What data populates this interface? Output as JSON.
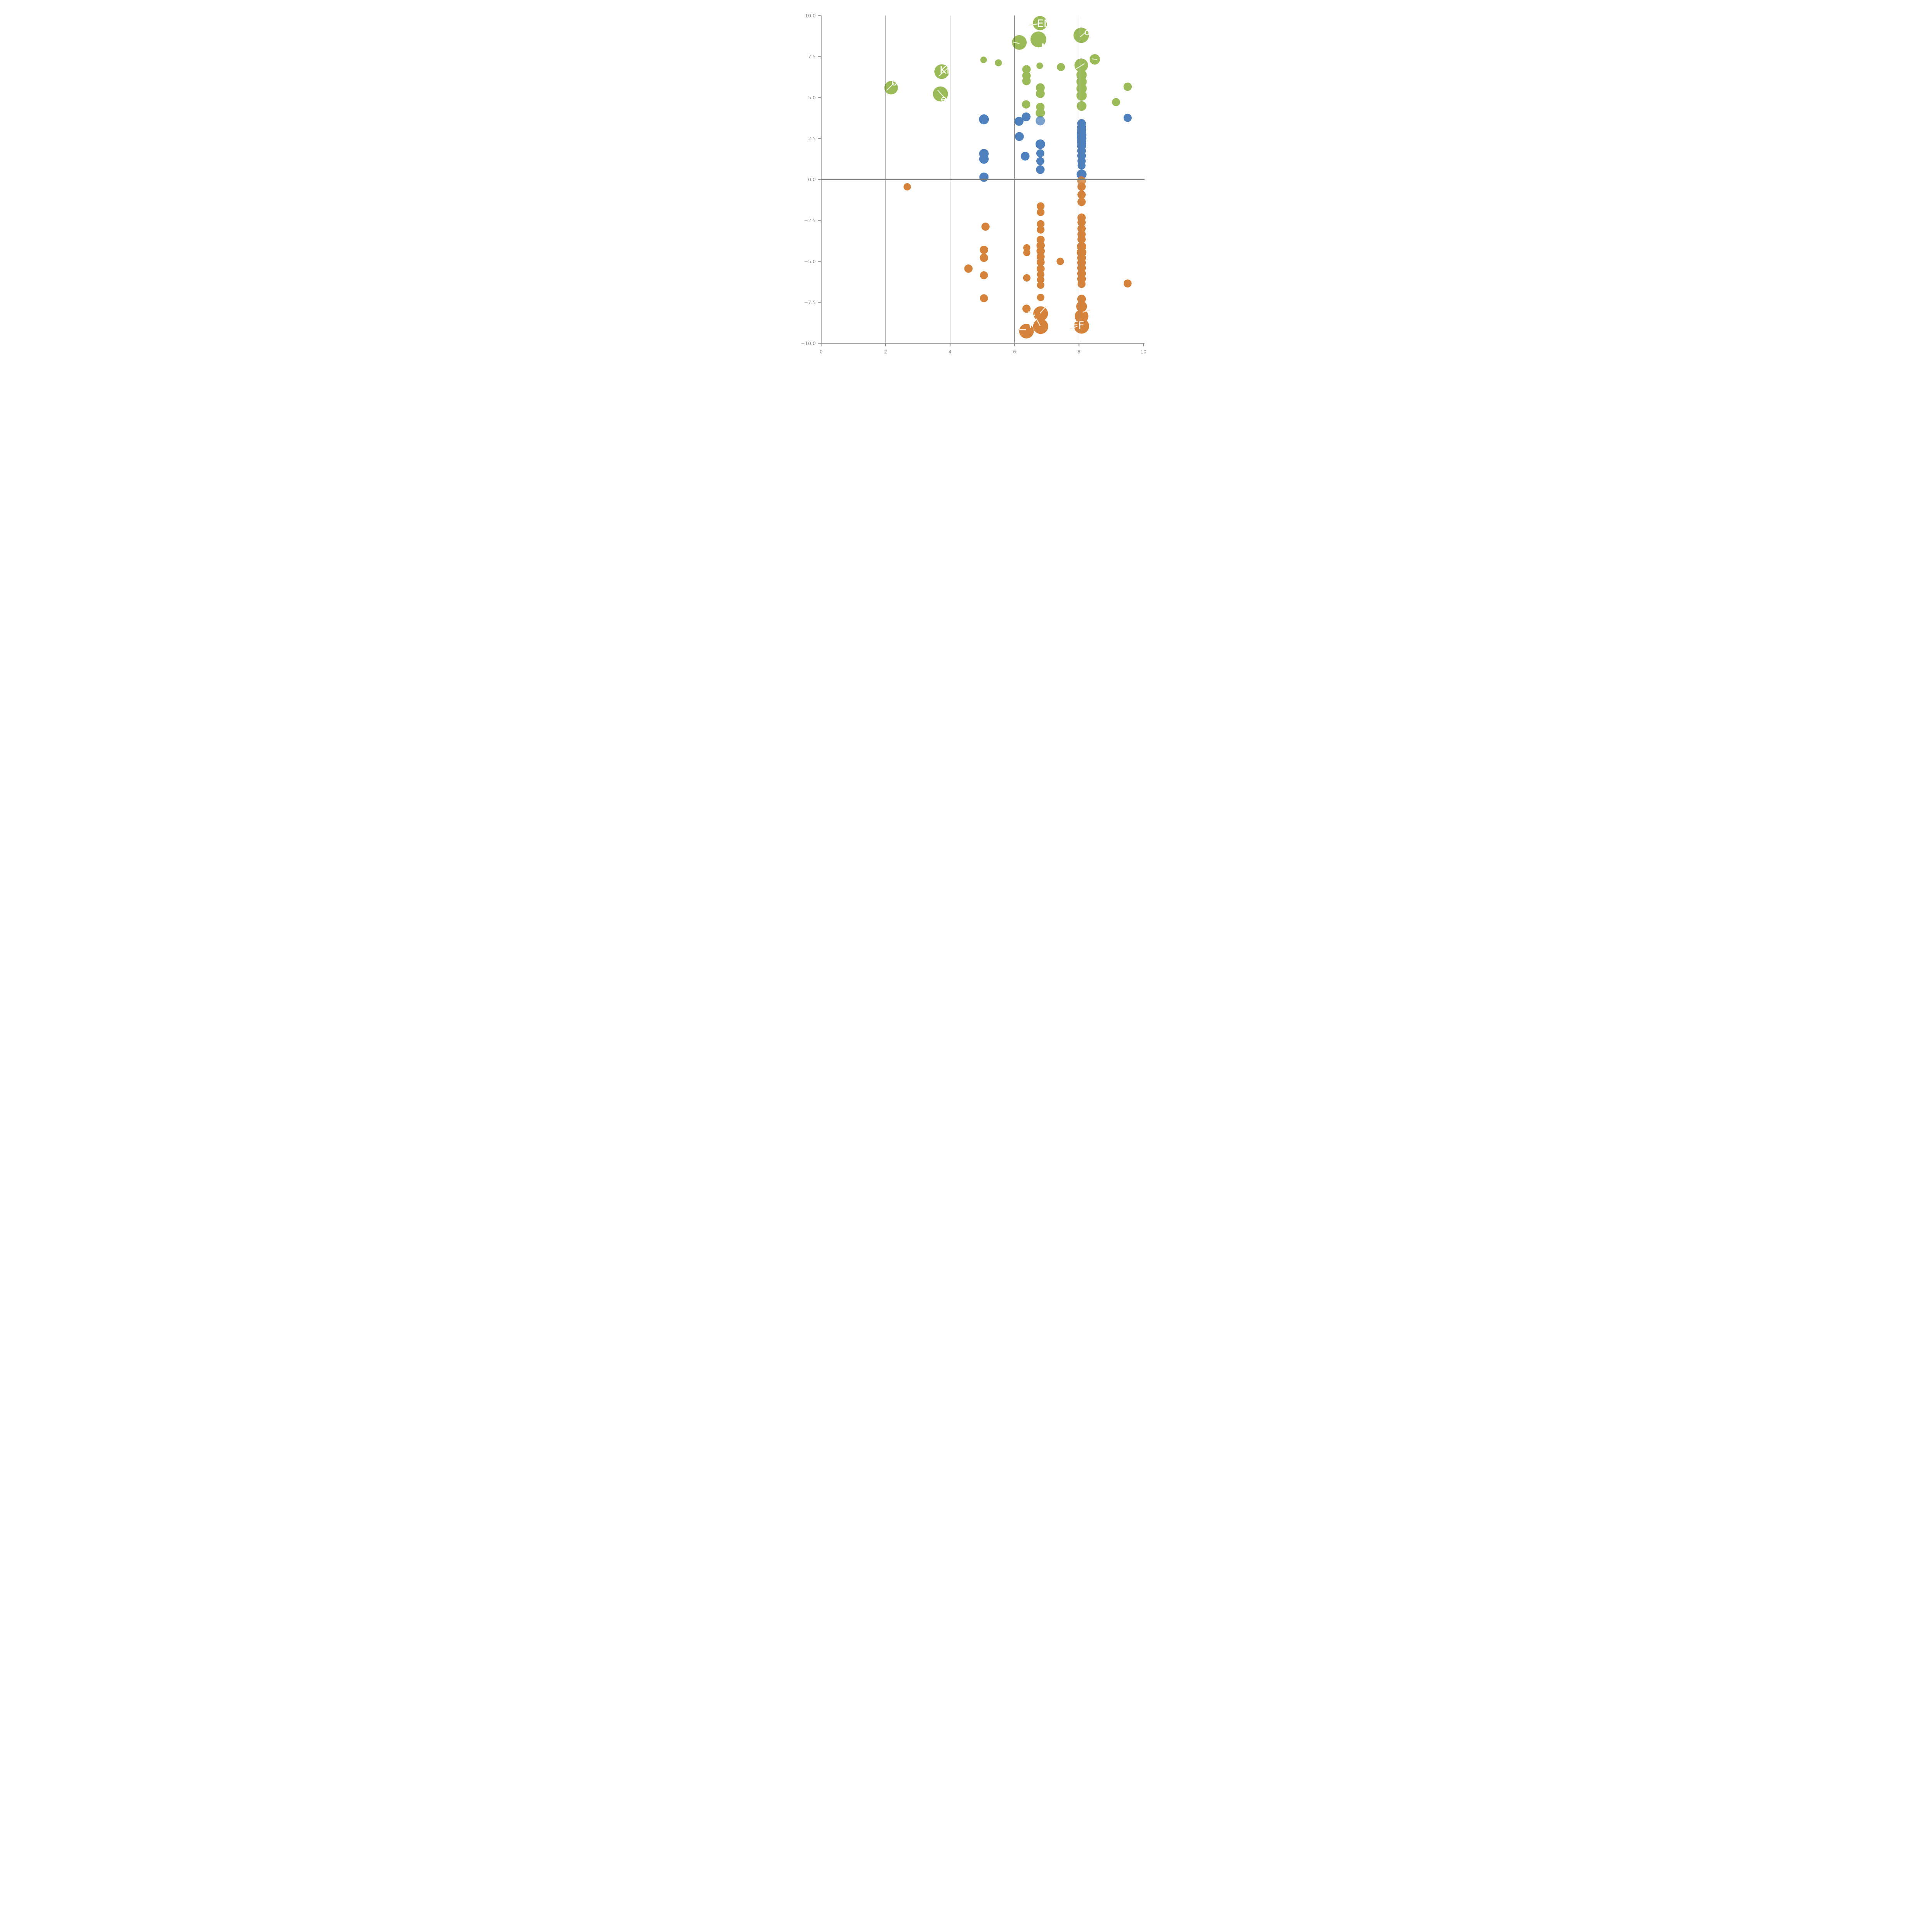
{
  "figure": {
    "background": "#ffffff",
    "axis_color": "#8c8c8c",
    "tick_label_color": "#8a8a8a",
    "gridline_color": "#5a5a5a",
    "zero_line_color": "#7a7a7a"
  },
  "chart_data": {
    "type": "scatter",
    "title": "",
    "xlabel": "",
    "ylabel": "",
    "xlim": [
      0,
      10
    ],
    "ylim": [
      -10,
      10
    ],
    "x_ticks": [
      0,
      2,
      4,
      6,
      8,
      10
    ],
    "x_tick_labels": [
      "0",
      "2",
      "4",
      "6",
      "8",
      "10"
    ],
    "y_ticks": [
      10.0,
      7.5,
      5.0,
      2.5,
      0.0,
      -2.5,
      -5.0,
      -7.5,
      -10.0
    ],
    "y_tick_labels": [
      "10.0",
      "7.5",
      "5.0",
      "2.5",
      "0.0",
      "−2.5",
      "−5.0",
      "−7.5",
      "−10.0"
    ],
    "grid_x": [
      2,
      4,
      6,
      8
    ],
    "zero_line_y": 0,
    "legend": "none",
    "series": [
      {
        "name": "green",
        "color": "#9bbb59",
        "leader_color": "#e7f0d6",
        "points": [
          {
            "x": 6.79,
            "y": 9.54,
            "r": 18.5
          },
          {
            "x": 6.15,
            "y": 8.36,
            "r": 19.0
          },
          {
            "x": 6.74,
            "y": 8.55,
            "r": 20.5
          },
          {
            "x": 8.07,
            "y": 8.8,
            "r": 20.0
          },
          {
            "x": 5.04,
            "y": 7.3,
            "r": 8.5
          },
          {
            "x": 5.5,
            "y": 7.12,
            "r": 9.0
          },
          {
            "x": 8.49,
            "y": 7.33,
            "r": 13.5
          },
          {
            "x": 7.44,
            "y": 6.86,
            "r": 10.4
          },
          {
            "x": 6.78,
            "y": 6.94,
            "r": 8.5
          },
          {
            "x": 8.07,
            "y": 6.97,
            "r": 17.6
          },
          {
            "x": 6.37,
            "y": 6.72,
            "r": 11.0
          },
          {
            "x": 6.37,
            "y": 6.33,
            "r": 11.0
          },
          {
            "x": 6.37,
            "y": 6.01,
            "r": 11.0
          },
          {
            "x": 8.08,
            "y": 6.38,
            "r": 13.4
          },
          {
            "x": 8.08,
            "y": 5.97,
            "r": 13.4
          },
          {
            "x": 8.08,
            "y": 5.55,
            "r": 13.4
          },
          {
            "x": 8.08,
            "y": 5.12,
            "r": 13.4
          },
          {
            "x": 2.17,
            "y": 5.6,
            "r": 17.5
          },
          {
            "x": 3.74,
            "y": 6.58,
            "r": 19.0
          },
          {
            "x": 3.7,
            "y": 5.22,
            "r": 19.5
          },
          {
            "x": 6.8,
            "y": 5.6,
            "r": 11.5
          },
          {
            "x": 6.8,
            "y": 5.24,
            "r": 11.5
          },
          {
            "x": 9.51,
            "y": 5.66,
            "r": 10.8
          },
          {
            "x": 9.15,
            "y": 4.72,
            "r": 10.5
          },
          {
            "x": 6.36,
            "y": 4.58,
            "r": 10.8
          },
          {
            "x": 6.8,
            "y": 4.42,
            "r": 11.0
          },
          {
            "x": 6.8,
            "y": 4.06,
            "r": 12.0
          },
          {
            "x": 8.08,
            "y": 4.48,
            "r": 12.6
          }
        ]
      },
      {
        "name": "blue",
        "color": "#4e80bd",
        "leader_color": "#dde8f4",
        "points": [
          {
            "x": 5.05,
            "y": 3.67,
            "r": 12.8
          },
          {
            "x": 9.51,
            "y": 3.76,
            "r": 10.6
          },
          {
            "x": 6.36,
            "y": 3.82,
            "r": 11.4
          },
          {
            "x": 6.14,
            "y": 3.55,
            "r": 11.6
          },
          {
            "x": 6.8,
            "y": 3.58,
            "r": 12.0,
            "alpha": 0.75
          },
          {
            "x": 6.15,
            "y": 2.62,
            "r": 11.6
          },
          {
            "x": 5.05,
            "y": 1.57,
            "r": 12.4
          },
          {
            "x": 5.05,
            "y": 1.25,
            "r": 12.4
          },
          {
            "x": 6.33,
            "y": 1.42,
            "r": 11.4
          },
          {
            "x": 6.8,
            "y": 2.15,
            "r": 12.4
          },
          {
            "x": 6.8,
            "y": 1.6,
            "r": 10.4
          },
          {
            "x": 6.8,
            "y": 1.12,
            "r": 10.4
          },
          {
            "x": 6.8,
            "y": 0.6,
            "r": 11.2
          },
          {
            "x": 5.05,
            "y": 0.14,
            "r": 12.0
          },
          {
            "x": 8.08,
            "y": 3.42,
            "r": 11.2
          },
          {
            "x": 8.08,
            "y": 3.18,
            "r": 11.6
          },
          {
            "x": 8.08,
            "y": 2.95,
            "r": 12.0
          },
          {
            "x": 8.08,
            "y": 2.72,
            "r": 12.4
          },
          {
            "x": 8.08,
            "y": 2.5,
            "r": 12.4
          },
          {
            "x": 8.08,
            "y": 2.28,
            "r": 12.0
          },
          {
            "x": 8.08,
            "y": 2.05,
            "r": 11.6
          },
          {
            "x": 8.08,
            "y": 1.75,
            "r": 11.2
          },
          {
            "x": 8.08,
            "y": 1.45,
            "r": 11.2
          },
          {
            "x": 8.08,
            "y": 1.12,
            "r": 10.8
          },
          {
            "x": 8.08,
            "y": 0.85,
            "r": 10.4
          },
          {
            "x": 8.08,
            "y": 0.31,
            "r": 12.8
          }
        ]
      },
      {
        "name": "orange",
        "color": "#d5823a",
        "leader_color": "#f9e7d4",
        "points": [
          {
            "x": 2.67,
            "y": -0.45,
            "r": 9.5
          },
          {
            "x": 8.08,
            "y": -0.08,
            "r": 11.5,
            "alpha": 0.85
          },
          {
            "x": 8.08,
            "y": -0.44,
            "r": 10.8
          },
          {
            "x": 8.08,
            "y": -0.93,
            "r": 10.8
          },
          {
            "x": 8.08,
            "y": -1.37,
            "r": 10.8
          },
          {
            "x": 6.81,
            "y": -1.63,
            "r": 10.0
          },
          {
            "x": 6.81,
            "y": -2.0,
            "r": 10.0
          },
          {
            "x": 5.1,
            "y": -2.88,
            "r": 10.6
          },
          {
            "x": 6.81,
            "y": -2.72,
            "r": 10.0
          },
          {
            "x": 6.81,
            "y": -3.07,
            "r": 10.0
          },
          {
            "x": 8.08,
            "y": -2.33,
            "r": 10.8
          },
          {
            "x": 8.08,
            "y": -2.62,
            "r": 10.8
          },
          {
            "x": 8.08,
            "y": -3.0,
            "r": 10.8
          },
          {
            "x": 8.08,
            "y": -3.35,
            "r": 10.8
          },
          {
            "x": 8.08,
            "y": -3.65,
            "r": 10.8
          },
          {
            "x": 6.81,
            "y": -3.68,
            "r": 10.4
          },
          {
            "x": 6.81,
            "y": -4.03,
            "r": 10.8
          },
          {
            "x": 6.81,
            "y": -4.37,
            "r": 10.8
          },
          {
            "x": 6.81,
            "y": -4.72,
            "r": 10.4
          },
          {
            "x": 6.81,
            "y": -5.05,
            "r": 10.4
          },
          {
            "x": 6.81,
            "y": -5.45,
            "r": 10.4
          },
          {
            "x": 6.81,
            "y": -5.8,
            "r": 9.6
          },
          {
            "x": 6.81,
            "y": -6.12,
            "r": 9.6
          },
          {
            "x": 6.81,
            "y": -6.45,
            "r": 9.6
          },
          {
            "x": 6.81,
            "y": -7.2,
            "r": 9.6
          },
          {
            "x": 6.38,
            "y": -4.17,
            "r": 9.2
          },
          {
            "x": 6.38,
            "y": -4.47,
            "r": 9.2
          },
          {
            "x": 6.38,
            "y": -6.01,
            "r": 9.6
          },
          {
            "x": 7.42,
            "y": -5.0,
            "r": 9.6
          },
          {
            "x": 4.57,
            "y": -5.44,
            "r": 10.8
          },
          {
            "x": 5.05,
            "y": -4.3,
            "r": 10.8
          },
          {
            "x": 5.05,
            "y": -4.78,
            "r": 10.8
          },
          {
            "x": 5.05,
            "y": -5.85,
            "r": 10.4
          },
          {
            "x": 5.05,
            "y": -7.25,
            "r": 10.4
          },
          {
            "x": 9.51,
            "y": -6.35,
            "r": 10.4
          },
          {
            "x": 8.08,
            "y": -4.1,
            "r": 12.0
          },
          {
            "x": 8.08,
            "y": -4.45,
            "r": 12.4
          },
          {
            "x": 8.08,
            "y": -4.78,
            "r": 11.2
          },
          {
            "x": 8.08,
            "y": -5.08,
            "r": 11.2
          },
          {
            "x": 8.08,
            "y": -5.4,
            "r": 11.2
          },
          {
            "x": 8.08,
            "y": -5.75,
            "r": 11.2
          },
          {
            "x": 8.08,
            "y": -6.07,
            "r": 11.2
          },
          {
            "x": 8.08,
            "y": -6.38,
            "r": 10.4
          },
          {
            "x": 8.08,
            "y": -7.3,
            "r": 11.2
          },
          {
            "x": 8.08,
            "y": -7.75,
            "r": 14.0
          },
          {
            "x": 8.08,
            "y": -8.35,
            "r": 17.6
          },
          {
            "x": 8.08,
            "y": -8.95,
            "r": 19.6
          },
          {
            "x": 6.37,
            "y": -7.89,
            "r": 10.6
          },
          {
            "x": 6.81,
            "y": -8.19,
            "r": 19.0
          },
          {
            "x": 6.81,
            "y": -8.97,
            "r": 19.6
          },
          {
            "x": 6.37,
            "y": -9.26,
            "r": 19.0
          }
        ]
      }
    ],
    "leader_lines": [
      {
        "series": "green",
        "x1": 6.45,
        "y1": 9.42,
        "x2": 6.76,
        "y2": 9.5,
        "w": 2.4
      },
      {
        "series": "green",
        "x1": 5.97,
        "y1": 8.38,
        "x2": 6.14,
        "y2": 8.3,
        "w": 2.4
      },
      {
        "series": "green",
        "x1": 8.2,
        "y1": 8.97,
        "x2": 8.04,
        "y2": 8.71,
        "w": 2.2
      },
      {
        "series": "green",
        "x1": 8.41,
        "y1": 7.36,
        "x2": 8.56,
        "y2": 7.32,
        "w": 2.2
      },
      {
        "series": "green",
        "x1": 7.92,
        "y1": 6.76,
        "x2": 8.16,
        "y2": 7.06,
        "w": 2.4
      },
      {
        "series": "green",
        "x1": 2.26,
        "y1": 5.88,
        "x2": 2.04,
        "y2": 5.45,
        "w": 2.2
      },
      {
        "series": "green",
        "x1": 3.66,
        "y1": 6.32,
        "x2": 3.93,
        "y2": 6.8,
        "w": 2.2
      },
      {
        "series": "green",
        "x1": 3.62,
        "y1": 5.44,
        "x2": 3.82,
        "y2": 5.0,
        "w": 2.2
      },
      {
        "series": "orange",
        "x1": 6.97,
        "y1": -7.75,
        "x2": 6.8,
        "y2": -8.15,
        "w": 2.4
      },
      {
        "series": "orange",
        "x1": 6.68,
        "y1": -8.52,
        "x2": 6.79,
        "y2": -8.92,
        "w": 2.4
      },
      {
        "series": "orange",
        "x1": 6.12,
        "y1": -9.17,
        "x2": 6.34,
        "y2": -9.17,
        "w": 3.4
      },
      {
        "series": "orange",
        "x1": 8.13,
        "y1": -8.1,
        "x2": 8.33,
        "y2": -7.97,
        "w": 2.4
      },
      {
        "series": "orange",
        "x1": 7.72,
        "y1": -9.12,
        "x2": 7.94,
        "y2": -8.97,
        "w": 2.4
      },
      {
        "series": "orange",
        "x1": 6.44,
        "y1": -8.06,
        "x2": 6.52,
        "y2": -8.16,
        "w": 2.0
      }
    ],
    "label_fragments": [
      {
        "text": "EN",
        "x": 6.92,
        "y": 9.5,
        "size": 27,
        "rot": 0
      },
      {
        "text": "M",
        "x": 6.95,
        "y": 8.08,
        "size": 24,
        "rot": 0
      },
      {
        "text": "KI",
        "x": 3.83,
        "y": 6.66,
        "size": 27,
        "rot": 0
      },
      {
        "text": "o",
        "x": 2.27,
        "y": 5.93,
        "size": 24,
        "rot": 0
      },
      {
        "text": "e",
        "x": 3.8,
        "y": 4.92,
        "size": 24,
        "rot": 0
      },
      {
        "text": "o",
        "x": 8.25,
        "y": 9.0,
        "size": 24,
        "rot": 0
      },
      {
        "text": "FF",
        "x": 7.98,
        "y": -8.92,
        "size": 27,
        "rot": 0
      },
      {
        "text": "(",
        "x": 6.53,
        "y": -8.62,
        "size": 40,
        "rot": 18
      }
    ]
  }
}
